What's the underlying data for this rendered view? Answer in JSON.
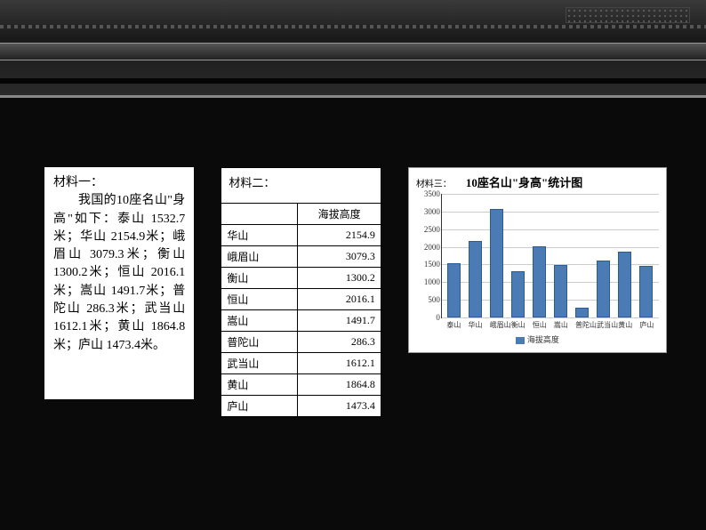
{
  "panel1": {
    "heading": "材料一：",
    "body": "我国的10座名山\"身高\"如下：泰山 1532.7米；华山 2154.9米；峨眉山 3079.3米；衡山 1300.2米；恒山 2016.1米；嵩山 1491.7米；普陀山 286.3米；武当山 1612.1米；黄山 1864.8米；庐山 1473.4米。"
  },
  "panel2": {
    "heading": "材料二：",
    "header_col2": "海拔高度",
    "rows": [
      {
        "name": "华山",
        "height": "2154.9"
      },
      {
        "name": "峨眉山",
        "height": "3079.3"
      },
      {
        "name": "衡山",
        "height": "1300.2"
      },
      {
        "name": "恒山",
        "height": "2016.1"
      },
      {
        "name": "嵩山",
        "height": "1491.7"
      },
      {
        "name": "普陀山",
        "height": "286.3"
      },
      {
        "name": "武当山",
        "height": "1612.1"
      },
      {
        "name": "黄山",
        "height": "1864.8"
      },
      {
        "name": "庐山",
        "height": "1473.4"
      }
    ]
  },
  "panel3": {
    "material_label": "材料三：",
    "title": "10座名山\"身高\"统计图",
    "legend_label": "海拔高度",
    "chart": {
      "type": "bar",
      "ylim": [
        0,
        3500
      ],
      "ytick_step": 500,
      "bar_color": "#4a7bb5",
      "bar_border": "#2a5b95",
      "grid_color": "#cccccc",
      "background_color": "#ffffff",
      "categories": [
        "泰山",
        "华山",
        "峨眉山",
        "衡山",
        "恒山",
        "嵩山",
        "普陀山",
        "武当山",
        "黄山",
        "庐山"
      ],
      "values": [
        1532.7,
        2154.9,
        3079.3,
        1300.2,
        2016.1,
        1491.7,
        286.3,
        1612.1,
        1864.8,
        1473.4
      ]
    }
  }
}
